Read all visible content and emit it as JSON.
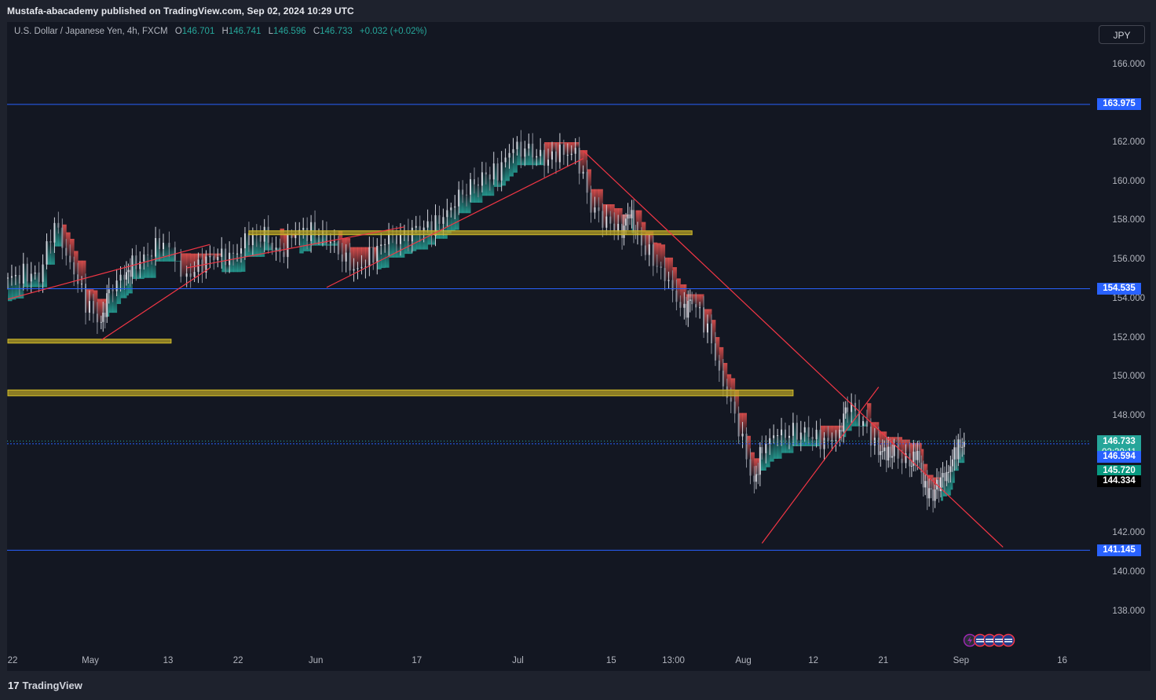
{
  "publisher_line": "Mustafa-abacademy published on TradingView.com, Sep 02, 2024 10:29 UTC",
  "legend": {
    "symbol": "U.S. Dollar / Japanese Yen, 4h, FXCM",
    "o_key": "O",
    "o_val": "146.701",
    "h_key": "H",
    "h_val": "146.741",
    "l_key": "L",
    "l_val": "146.596",
    "c_key": "C",
    "c_val": "146.733",
    "change": "+0.032 (+0.02%)"
  },
  "currency_button": "JPY",
  "footer_brand": "TradingView",
  "colors": {
    "background": "#131722",
    "frame": "#1e222d",
    "up": "#26a69a",
    "down": "#ef5350",
    "level_line": "#2962ff",
    "zone": "#b5a025",
    "trendline": "#f23645"
  },
  "chart_data": {
    "type": "candlestick",
    "symbol": "USDJPY",
    "timeframe": "4h",
    "ylim": [
      136.2,
      167.3
    ],
    "y_ticks": [
      "166.000",
      "162.000",
      "160.000",
      "158.000",
      "156.000",
      "154.000",
      "152.000",
      "150.000",
      "148.000",
      "142.000",
      "140.000",
      "138.000"
    ],
    "x_ticks": [
      "22",
      "May",
      "13",
      "22",
      "Jun",
      "17",
      "Jul",
      "15",
      "13:00",
      "Aug",
      "12",
      "21",
      "Sep",
      "16"
    ],
    "x_tick_index": [
      0,
      10,
      20,
      29,
      39,
      52,
      65,
      77,
      85,
      94,
      103,
      112,
      122,
      135
    ],
    "close_series": [
      154.9,
      155.4,
      155.2,
      157.8,
      156.0,
      153.8,
      152.6,
      154.6,
      155.0,
      155.7,
      156.4,
      156.8,
      155.2,
      155.9,
      156.1,
      156.4,
      157.0,
      157.2,
      156.4,
      157.3,
      157.6,
      157.3,
      156.0,
      155.6,
      156.3,
      157.0,
      157.4,
      157.5,
      157.8,
      158.9,
      159.5,
      160.4,
      160.6,
      161.6,
      161.8,
      161.0,
      161.4,
      161.7,
      158.6,
      158.0,
      157.6,
      158.3,
      157.2,
      156.0,
      154.6,
      153.5,
      153.9,
      152.4,
      149.8,
      147.3,
      144.5,
      146.5,
      146.9,
      147.3,
      147.1,
      146.5,
      147.3,
      148.6,
      147.6,
      146.4,
      145.9,
      146.2,
      145.6,
      145.9,
      144.4,
      144.0,
      144.7,
      145.4,
      146.2,
      146.7
    ],
    "close_series_x_index": [
      0,
      2,
      4,
      6,
      8,
      10,
      12,
      13,
      15,
      16,
      18,
      20,
      23,
      25,
      27,
      29,
      31,
      33,
      35,
      37,
      39,
      41,
      43,
      45,
      47,
      49,
      51,
      53,
      55,
      57,
      59,
      61,
      63,
      65,
      67,
      69,
      71,
      73,
      75,
      77,
      79,
      80,
      81,
      83,
      85,
      87,
      88,
      90,
      92,
      94,
      96,
      97,
      99,
      101,
      103,
      105,
      107,
      108,
      110,
      112,
      113,
      114,
      116,
      117,
      118,
      119,
      120,
      121,
      122,
      123
    ],
    "series": [
      {
        "name": "ribbon_upper",
        "role": "trailing-stop ribbon bound"
      },
      {
        "name": "ribbon_lower",
        "role": "trailing-stop ribbon bound"
      }
    ],
    "horizontal_levels": [
      163.975,
      154.535,
      146.594,
      141.145
    ],
    "zones": [
      {
        "low": 157.3,
        "high": 157.5,
        "from_index": 31,
        "to_index": 88
      },
      {
        "low": 151.75,
        "high": 151.95,
        "from_index": 0,
        "to_index": 21
      },
      {
        "low": 149.05,
        "high": 149.35,
        "from_index": 0,
        "to_index": 101
      }
    ],
    "trendlines": [
      {
        "from": [
          0,
          154.0
        ],
        "to": [
          26,
          156.8
        ]
      },
      {
        "from": [
          12,
          151.9
        ],
        "to": [
          26,
          155.6
        ]
      },
      {
        "from": [
          23,
          155.6
        ],
        "to": [
          51,
          157.7
        ]
      },
      {
        "from": [
          41,
          154.6
        ],
        "to": [
          74,
          161.2
        ]
      },
      {
        "from": [
          74,
          161.6
        ],
        "to": [
          128,
          141.3
        ]
      },
      {
        "from": [
          97,
          141.5
        ],
        "to": [
          112,
          149.5
        ]
      }
    ],
    "price_labels": [
      {
        "value": "163.975",
        "price": 163.975,
        "color": "#2962ff"
      },
      {
        "value": "154.535",
        "price": 154.535,
        "color": "#2962ff"
      },
      {
        "value": "146.733",
        "price": 146.733,
        "color": "#26a69a",
        "sub": "02:30:11"
      },
      {
        "value": "146.594",
        "price": 145.91,
        "color": "#2962ff"
      },
      {
        "value": "145.720",
        "price": 145.2,
        "color": "#089981"
      },
      {
        "value": "144.334",
        "price": 144.66,
        "color": "#000000"
      },
      {
        "value": "141.145",
        "price": 141.145,
        "color": "#2962ff"
      }
    ],
    "last_price": 146.733,
    "countdown": "02:30:11"
  }
}
